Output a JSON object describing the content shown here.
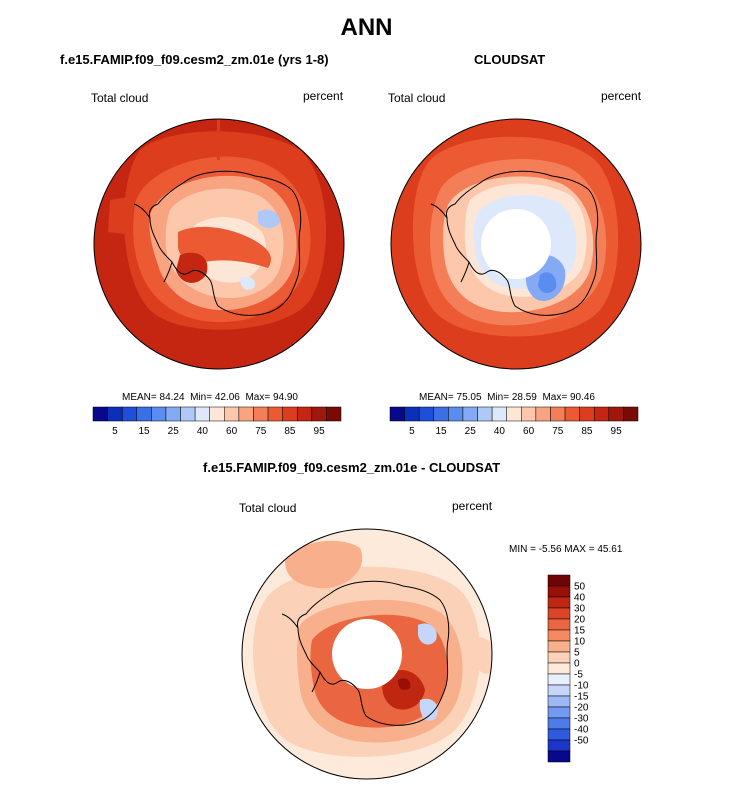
{
  "title": "ANN",
  "panels": [
    {
      "title": "f.e15.FAMIP.f09_f09.cesm2_zm.01e (yrs 1-8)",
      "left_label": "Total cloud",
      "right_label": "percent",
      "stats": {
        "mean_label": "MEAN=",
        "mean": "84.24",
        "min_label": "Min=",
        "min": "42.06",
        "max_label": "Max=",
        "max": "94.90"
      }
    },
    {
      "title": "CLOUDSAT",
      "left_label": "Total cloud",
      "right_label": "percent",
      "stats": {
        "mean_label": "MEAN=",
        "mean": "75.05",
        "min_label": "Min=",
        "min": "28.59",
        "max_label": "Max=",
        "max": "90.46"
      }
    },
    {
      "title": "f.e15.FAMIP.f09_f09.cesm2_zm.01e - CLOUDSAT",
      "left_label": "Total cloud",
      "right_label": "percent",
      "stats_text": "MIN =  -5.56 MAX =  45.61"
    }
  ],
  "colorbar_abs": {
    "colors": [
      "#08088c",
      "#0b2fb9",
      "#1f4fd8",
      "#3a6fe6",
      "#5b8cef",
      "#84aaf5",
      "#b0c8f7",
      "#dde9fb",
      "#fde6d6",
      "#fcc7aa",
      "#f9a480",
      "#f47e57",
      "#eb5a33",
      "#dc3d1c",
      "#c42612",
      "#a0170b",
      "#790a04"
    ],
    "ticks": [
      "5",
      "15",
      "25",
      "40",
      "60",
      "75",
      "85",
      "95"
    ],
    "tick_positions": [
      1,
      3,
      5,
      7,
      9,
      11,
      13,
      15
    ]
  },
  "colorbar_diff": {
    "colors": [
      "#08088c",
      "#1a35c8",
      "#2f5ae0",
      "#4d7ce9",
      "#7399f0",
      "#9eb8f4",
      "#c6d6f8",
      "#e8f0fc",
      "#fdeadb",
      "#fbd2b7",
      "#f8b08c",
      "#f38a63",
      "#ea6640",
      "#db4424",
      "#bf2710",
      "#970f05",
      "#700303"
    ],
    "ticks": [
      "50",
      "40",
      "30",
      "20",
      "15",
      "10",
      "5",
      "0",
      "-5",
      "-10",
      "-15",
      "-20",
      "-30",
      "-40",
      "-50"
    ]
  },
  "chart_data": [
    {
      "type": "heatmap",
      "title": "f.e15.FAMIP.f09_f09.cesm2_zm.01e (yrs 1-8)",
      "variable": "Total cloud",
      "units": "percent",
      "mean": 84.24,
      "min": 42.06,
      "max": 94.9,
      "levels": [
        5,
        10,
        15,
        20,
        25,
        30,
        40,
        50,
        60,
        65,
        70,
        75,
        80,
        85,
        90,
        95
      ]
    },
    {
      "type": "heatmap",
      "title": "CLOUDSAT",
      "variable": "Total cloud",
      "units": "percent",
      "mean": 75.05,
      "min": 28.59,
      "max": 90.46,
      "levels": [
        5,
        10,
        15,
        20,
        25,
        30,
        40,
        50,
        60,
        65,
        70,
        75,
        80,
        85,
        90,
        95
      ]
    },
    {
      "type": "heatmap",
      "title": "f.e15.FAMIP.f09_f09.cesm2_zm.01e - CLOUDSAT",
      "variable": "Total cloud",
      "units": "percent",
      "min": -5.56,
      "max": 45.61,
      "levels": [
        -50,
        -40,
        -30,
        -20,
        -15,
        -10,
        -5,
        0,
        5,
        10,
        15,
        20,
        30,
        40,
        50
      ]
    }
  ]
}
